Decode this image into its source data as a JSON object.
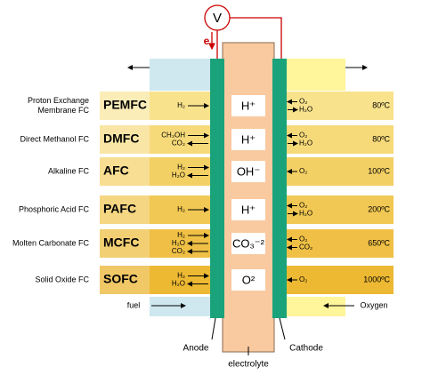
{
  "voltmeter": "V",
  "electron": "e",
  "fuel": "fuel",
  "oxygen": "Oxygen",
  "anode": "Anode",
  "cathode": "Cathode",
  "electrolyte": "electrolyte",
  "cells": [
    {
      "name": [
        "Proton Exchange",
        "Membrane FC"
      ],
      "abbr": "PEMFC",
      "anode_species": [
        "H₂"
      ],
      "ion": "H⁺",
      "cathode_species": [
        "O₂",
        "H₂O"
      ],
      "temperature": "80ºC"
    },
    {
      "name": [
        "Direct Methanol FC"
      ],
      "abbr": "DMFC",
      "anode_species": [
        "CH₃OH",
        "CO₂"
      ],
      "ion": "H⁺",
      "cathode_species": [
        "O₂",
        "H₂O"
      ],
      "temperature": "80ºC"
    },
    {
      "name": [
        "Alkaline FC"
      ],
      "abbr": "AFC",
      "anode_species": [
        "H₂",
        "H₂O"
      ],
      "ion": "OH⁻",
      "cathode_species": [
        "O₂"
      ],
      "temperature": "100ºC"
    },
    {
      "name": [
        "Phosphoric Acid FC"
      ],
      "abbr": "PAFC",
      "anode_species": [
        "H₂"
      ],
      "ion": "H⁺",
      "cathode_species": [
        "O₂",
        "H₂O"
      ],
      "temperature": "200ºC"
    },
    {
      "name": [
        "Molten Carbonate FC"
      ],
      "abbr": "MCFC",
      "anode_species": [
        "H₂",
        "H₂O",
        "CO₂"
      ],
      "ion": "CO₃⁻²",
      "cathode_species": [
        "O₂",
        "CO₂"
      ],
      "temperature": "650ºC"
    },
    {
      "name": [
        "Solid Oxide FC"
      ],
      "abbr": "SOFC",
      "anode_species": [
        "H₂",
        "H₂O"
      ],
      "ion": "O²",
      "cathode_species": [
        "O₂"
      ],
      "temperature": "1000ºC"
    }
  ]
}
